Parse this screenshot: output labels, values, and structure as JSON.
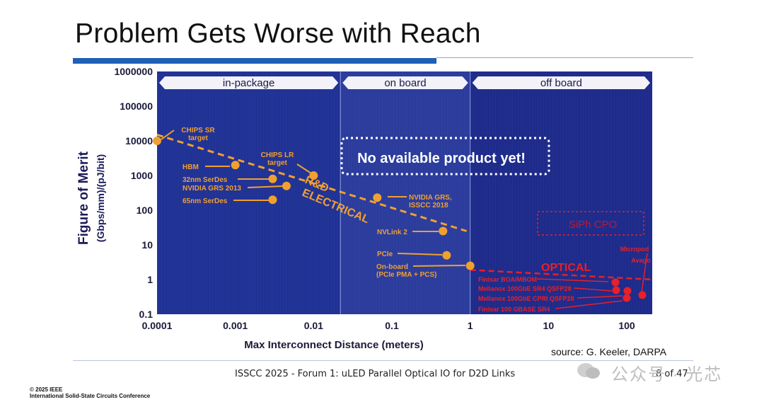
{
  "slide": {
    "title": "Problem Gets Worse with Reach",
    "footer": "ISSCC 2025 - Forum 1: uLED Parallel Optical IO for D2D Links",
    "page": "8 of 47",
    "source": "source: G. Keeler, DARPA",
    "copyright_line1": "© 2025 IEEE",
    "copyright_line2": "International Solid-State Circuits Conference",
    "watermark": "公众号 · 光芯",
    "colors": {
      "accent_blue": "#1f5fb8",
      "orange": "#f0a030",
      "red": "#e82028",
      "plot_bg": "#1e2d8a"
    }
  },
  "chart_data": {
    "type": "scatter",
    "xscale": "log",
    "yscale": "log",
    "xlim": [
      0.0001,
      200
    ],
    "ylim": [
      0.1,
      1000000
    ],
    "xlabel": "Max Interconnect Distance (meters)",
    "ylabel": "Figure of Merit",
    "ylabel_units": "(Gbps/mm)/(pJ/bit)",
    "xticks": [
      "0.0001",
      "0.001",
      "0.01",
      "0.1",
      "1",
      "10",
      "100"
    ],
    "xtick_values": [
      0.0001,
      0.001,
      0.01,
      0.1,
      1,
      10,
      100
    ],
    "yticks": [
      "1000000",
      "100000",
      "10000",
      "1000",
      "100",
      "10",
      "1",
      "0.1"
    ],
    "ytick_values": [
      1000000,
      100000,
      10000,
      1000,
      100,
      10,
      1,
      0.1
    ],
    "regions": [
      {
        "label": "in-package",
        "x0": 0.0001,
        "x1": 0.022
      },
      {
        "label": "on board",
        "x0": 0.022,
        "x1": 1
      },
      {
        "label": "off board",
        "x0": 1,
        "x1": 200
      }
    ],
    "annotations": {
      "no_product": "No available product yet!",
      "electrical_1": "R&D",
      "electrical_2": "ELECTRICAL",
      "optical": "OPTICAL",
      "siph": "SiPh CPO"
    },
    "electrical_points": [
      {
        "name": "CHIPS SR target",
        "x": 0.0001,
        "y": 10000
      },
      {
        "name": "HBM",
        "x": 0.001,
        "y": 2000
      },
      {
        "name": "32nm SerDes",
        "x": 0.003,
        "y": 800
      },
      {
        "name": "NVIDIA GRS 2013",
        "x": 0.0045,
        "y": 500
      },
      {
        "name": "65nm SerDes",
        "x": 0.003,
        "y": 200
      },
      {
        "name": "CHIPS LR target",
        "x": 0.01,
        "y": 1000
      },
      {
        "name": "NVIDIA GRS, ISSCC 2018",
        "x": 0.065,
        "y": 230
      },
      {
        "name": "NVLink 2",
        "x": 0.45,
        "y": 25
      },
      {
        "name": "PCIe",
        "x": 0.5,
        "y": 5
      },
      {
        "name": "On-board (PCIe PMA + PCS)",
        "x": 1,
        "y": 2.5
      }
    ],
    "optical_points": [
      {
        "name": "Finisar BOA/MBOM",
        "x": 70,
        "y": 0.8
      },
      {
        "name": "Mellanox 100GbE SR4 QSFP28",
        "x": 70,
        "y": 0.5
      },
      {
        "name": "Mellanox 100GbE CPRI QSFP28",
        "x": 100,
        "y": 0.3
      },
      {
        "name": "Finisar 100 GBASE SR4",
        "x": 100,
        "y": 0.45
      },
      {
        "name": "Avago Micropod",
        "x": 150,
        "y": 0.35
      }
    ]
  }
}
